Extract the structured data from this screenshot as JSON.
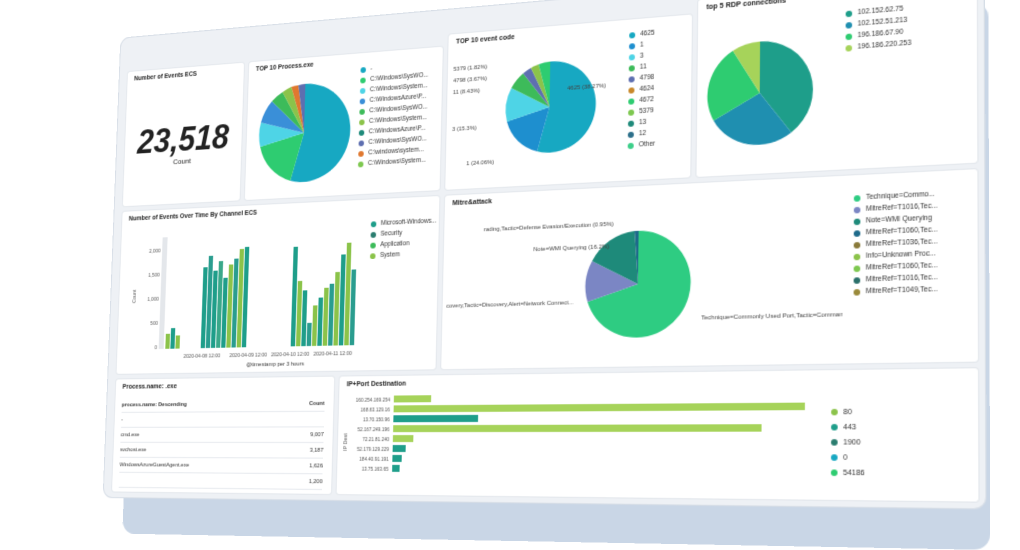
{
  "panels": {
    "events_ecs": {
      "title": "Number of Events ECS",
      "value": "23,518",
      "label": "Count"
    },
    "process_exe": {
      "title": "TOP 10 Process.exe",
      "legend": [
        "-",
        "C:\\Windows\\SysWO...",
        "C:\\Windows\\System...",
        "C:\\WindowsAzure\\P...",
        "C:\\Windows\\SysWO...",
        "C:\\Windows\\System...",
        "C:\\WindowsAzure\\P...",
        "C:\\Windows\\SysWO...",
        "C:\\windows\\system...",
        "C:\\Windows\\System..."
      ]
    },
    "event_code": {
      "title": "TOP 10 event code",
      "legend": [
        "4625",
        "1",
        "3",
        "11",
        "4798",
        "4624",
        "4672",
        "5379",
        "13",
        "12",
        "Other"
      ],
      "slice_labels": [
        "5379 (1.82%)",
        "4798 (3.67%)",
        "11 (8.43%)",
        "3 (15.3%)",
        "1 (24.06%)",
        "4625 (38.27%)"
      ]
    },
    "rdp": {
      "title": "top 5 RDP connections",
      "legend": [
        "102.152.62.75",
        "102.152.51.213",
        "196.186.67.90",
        "196.186.220.253"
      ]
    },
    "events_time": {
      "title": "Number of Events Over Time By Channel ECS",
      "legend": [
        "Microsoft-Windows...",
        "Security",
        "Application",
        "System"
      ],
      "y_ticks": [
        "2,000",
        "1,500",
        "1,000",
        "500",
        "0"
      ],
      "ylabel": "Count",
      "x_ticks": [
        "2020-04-08 12:00",
        "2020-04-09 12:00",
        "2020-04-10 12:00",
        "2020-04-11 12:00"
      ],
      "xlabel": "@timestamp per 3 hours"
    },
    "mitre": {
      "title": "Mitre&attack",
      "slice_labels": [
        "rading,Tactic=Defense Evasion/Execution (0.95%)",
        "Note=WMI Querying (16.2%)",
        "covery,Tactic=Discovery,Alert=Network Connect...",
        "Technique=Commonly Used Port,Tactic=Command"
      ],
      "legend": [
        "Technique=Commo...",
        "MitreRef=T1016,Tec...",
        "Note=WMI Querying",
        "MitreRef=T1060,Tec...",
        "MitreRef=T1036,Tec...",
        "Info=Unknown Proc...",
        "MitreRef=T1060,Tec...",
        "MitreRef=T1016,Tec...",
        "MitreRef=T1049,Tec..."
      ]
    },
    "process_name": {
      "title": "Process.name: .exe",
      "col1": "process.name: Descending",
      "col2": "Count",
      "rows": [
        [
          "-",
          ""
        ],
        [
          "cmd.exe",
          "9,007"
        ],
        [
          "svchost.exe",
          "3,187"
        ],
        [
          "WindowsAzureGuestAgent.exe",
          "1,626"
        ],
        [
          "",
          "1,200"
        ]
      ]
    },
    "ip_port": {
      "title": "IP+Port Destination",
      "ips": [
        "160.254.169.254",
        "168.63.129.16",
        "13.70.150.96",
        "52.167.249.196",
        "72.21.81.240",
        "52.179.129.229",
        "184.40.91.191",
        "13.75.163.65"
      ],
      "ylabel": "IP Dest",
      "legend": [
        "80",
        "443",
        "1900",
        "0",
        "54186"
      ]
    }
  },
  "colors": {
    "teal": "#17a2b8",
    "green": "#2ecc71",
    "darkteal": "#1e8a7a",
    "lime": "#8bc34a",
    "blue": "#3a8fd8",
    "slate": "#7b86c4"
  }
}
